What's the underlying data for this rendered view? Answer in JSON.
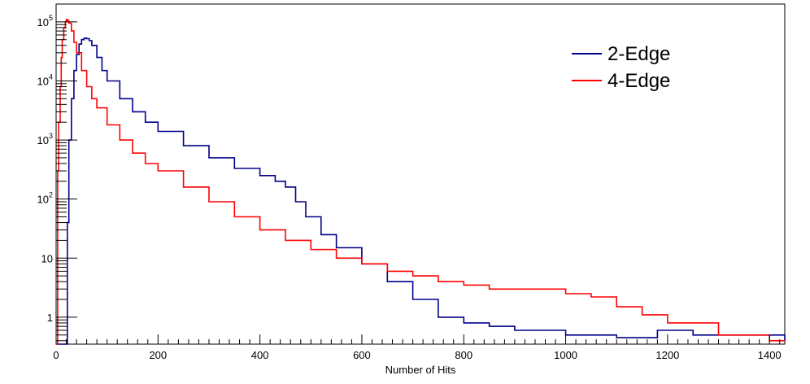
{
  "chart_data": {
    "type": "line",
    "title": "",
    "xlabel": "Number of Hits",
    "ylabel": "",
    "xlim": [
      0,
      1430
    ],
    "ylim": [
      0.35,
      200000
    ],
    "yscale": "log",
    "grid": false,
    "legend_position": "top-right",
    "x_ticks": [
      0,
      200,
      400,
      600,
      800,
      1000,
      1200,
      1400
    ],
    "x_tick_labels": [
      "0",
      "200",
      "400",
      "600",
      "800",
      "1000",
      "1200",
      "1400"
    ],
    "y_ticks": [
      {
        "value": 1,
        "base": "1",
        "exp": ""
      },
      {
        "value": 10,
        "base": "10",
        "exp": ""
      },
      {
        "value": 100,
        "base": "10",
        "exp": "2"
      },
      {
        "value": 1000,
        "base": "10",
        "exp": "3"
      },
      {
        "value": 10000,
        "base": "10",
        "exp": "4"
      },
      {
        "value": 100000,
        "base": "10",
        "exp": "5"
      }
    ],
    "series": [
      {
        "name": "2-Edge",
        "color": "#00008B",
        "x": [
          0,
          20,
          22,
          25,
          30,
          35,
          40,
          45,
          50,
          55,
          60,
          65,
          70,
          80,
          90,
          100,
          125,
          150,
          175,
          200,
          250,
          300,
          350,
          400,
          430,
          450,
          470,
          490,
          520,
          550,
          600,
          650,
          700,
          750,
          800,
          850,
          900,
          1000,
          1100,
          1180,
          1250,
          1430
        ],
        "y": [
          0.35,
          0.35,
          40,
          1000,
          5000,
          15000,
          28000,
          42000,
          50000,
          53000,
          52000,
          48000,
          40000,
          25000,
          15000,
          10000,
          5000,
          3000,
          2000,
          1400,
          800,
          500,
          330,
          250,
          200,
          160,
          90,
          50,
          25,
          15,
          8,
          4,
          2,
          1,
          0.8,
          0.7,
          0.6,
          0.5,
          0.45,
          0.6,
          0.5,
          0.4
        ]
      },
      {
        "name": "4-Edge",
        "color": "#FF0000",
        "x": [
          0,
          3,
          5,
          8,
          10,
          12,
          15,
          18,
          20,
          22,
          25,
          30,
          35,
          40,
          50,
          60,
          70,
          80,
          100,
          125,
          150,
          175,
          200,
          250,
          300,
          350,
          400,
          450,
          500,
          550,
          600,
          650,
          700,
          750,
          800,
          850,
          900,
          1000,
          1050,
          1100,
          1150,
          1200,
          1300,
          1400,
          1430
        ],
        "y": [
          0.35,
          300,
          2000,
          8000,
          25000,
          50000,
          80000,
          100000,
          110000,
          105000,
          95000,
          70000,
          45000,
          30000,
          15000,
          8000,
          5000,
          3500,
          1800,
          1000,
          600,
          400,
          300,
          160,
          90,
          50,
          30,
          20,
          14,
          10,
          8,
          6,
          5,
          4,
          3.5,
          3,
          3,
          2.5,
          2.2,
          1.5,
          1.1,
          0.8,
          0.5,
          0.4,
          0.4
        ]
      }
    ]
  }
}
